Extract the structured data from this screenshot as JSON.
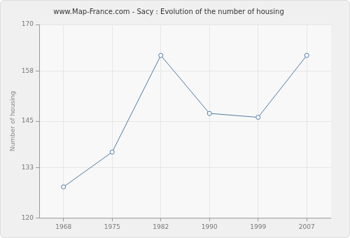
{
  "chart_data": {
    "type": "line",
    "title": "www.Map-France.com - Sacy : Evolution of the number of housing",
    "y_label": "Number of housing",
    "categories": [
      "1968",
      "1975",
      "1982",
      "1990",
      "1999",
      "2007"
    ],
    "values": [
      128,
      137,
      162,
      147,
      146,
      162
    ],
    "color": "#4f7ba6",
    "marker": "circle",
    "ylim": [
      120,
      170
    ],
    "yticks": [
      120,
      133,
      145,
      158,
      170
    ],
    "grid": true
  }
}
